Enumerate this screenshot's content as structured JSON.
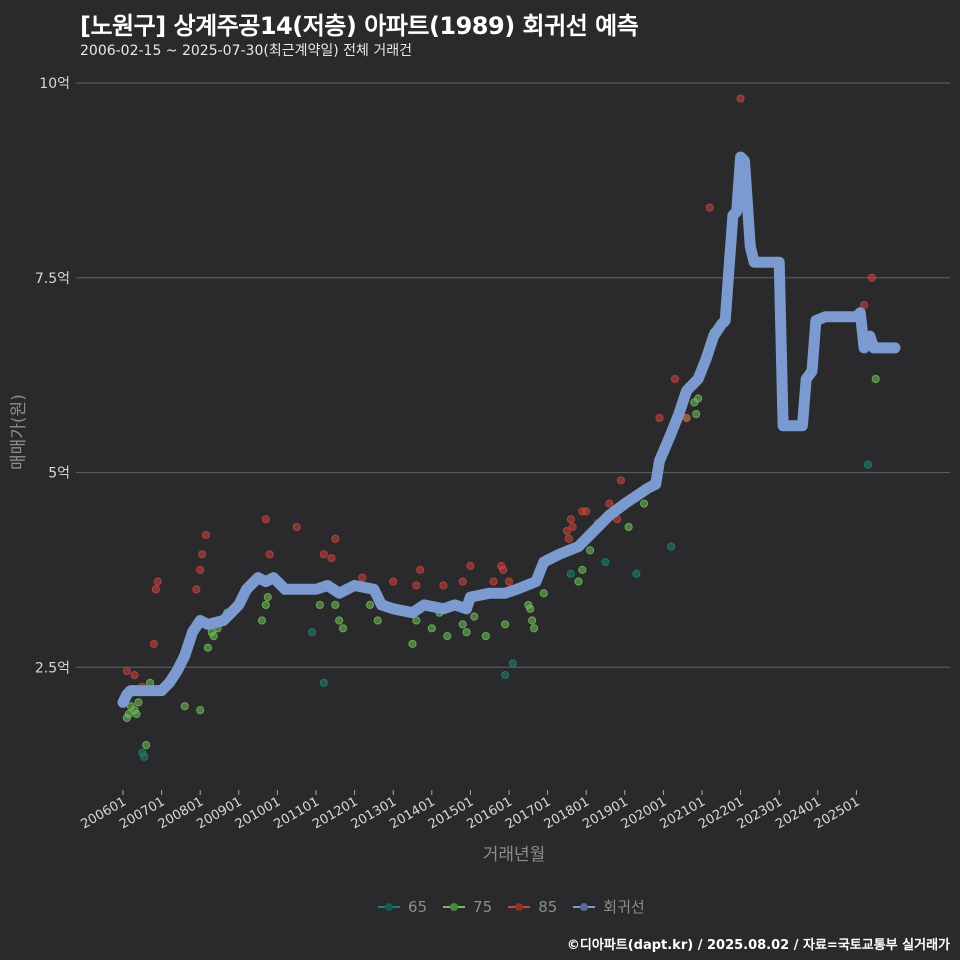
{
  "title": "[노원구] 상계주공14(저층) 아파트(1989) 회귀선 예측",
  "subtitle": "2006-02-15 ~ 2025-07-30(최근계약일) 전체 거래건",
  "caption": "©디아파트(dapt.kr) / 2025.08.02 / 자료=국토교통부 실거래가",
  "colors": {
    "background": "#2a292b",
    "grid": "#5a595b",
    "s65": "#1f7f74",
    "s75": "#6fbf5a",
    "s85": "#c9443f",
    "regression": "#7b9bd0"
  },
  "chart_data": {
    "type": "scatter",
    "title": "[노원구] 상계주공14(저층) 아파트(1989) 회귀선 예측",
    "subtitle": "2006-02-15 ~ 2025-07-30(최근계약일) 전체 거래건",
    "xlabel": "거래년월",
    "ylabel": "매매가(원)",
    "yticks": [
      {
        "v": 2.5,
        "label": "2.5억"
      },
      {
        "v": 5,
        "label": "5억"
      },
      {
        "v": 7.5,
        "label": "7.5억"
      },
      {
        "v": 10,
        "label": "10억"
      }
    ],
    "ylim": [
      0.9,
      10.2
    ],
    "xticks": [
      "200601",
      "200701",
      "200801",
      "200901",
      "201001",
      "201101",
      "201201",
      "201301",
      "201401",
      "201501",
      "201601",
      "201701",
      "201801",
      "201901",
      "202001",
      "202101",
      "202201",
      "202301",
      "202401",
      "202501"
    ],
    "xlim": [
      2005.0,
      2026.3
    ],
    "legend": [
      {
        "name": "65",
        "color": "#1f7f74"
      },
      {
        "name": "75",
        "color": "#6fbf5a"
      },
      {
        "name": "85",
        "color": "#c9443f"
      },
      {
        "name": "회귀선",
        "color": "#7b9bd0"
      }
    ],
    "series": [
      {
        "name": "65",
        "points": [
          [
            2006.5,
            1.4
          ],
          [
            2006.55,
            1.35
          ],
          [
            2010.9,
            2.95
          ],
          [
            2011.2,
            2.3
          ],
          [
            2015.9,
            2.4
          ],
          [
            2016.1,
            2.55
          ],
          [
            2017.6,
            3.7
          ],
          [
            2018.5,
            3.85
          ],
          [
            2019.3,
            3.7
          ],
          [
            2020.2,
            4.05
          ],
          [
            2025.3,
            5.1
          ]
        ]
      },
      {
        "name": "75",
        "points": [
          [
            2006.1,
            1.85
          ],
          [
            2006.15,
            1.9
          ],
          [
            2006.2,
            2.0
          ],
          [
            2006.3,
            1.95
          ],
          [
            2006.35,
            1.9
          ],
          [
            2006.4,
            2.05
          ],
          [
            2006.6,
            1.5
          ],
          [
            2006.7,
            2.3
          ],
          [
            2007.6,
            2.0
          ],
          [
            2008.0,
            1.95
          ],
          [
            2008.2,
            2.75
          ],
          [
            2008.3,
            2.95
          ],
          [
            2008.35,
            2.9
          ],
          [
            2008.45,
            3.0
          ],
          [
            2008.7,
            3.2
          ],
          [
            2009.6,
            3.1
          ],
          [
            2009.7,
            3.3
          ],
          [
            2009.75,
            3.4
          ],
          [
            2011.1,
            3.3
          ],
          [
            2011.5,
            3.3
          ],
          [
            2011.6,
            3.1
          ],
          [
            2011.7,
            3.0
          ],
          [
            2012.4,
            3.3
          ],
          [
            2012.6,
            3.1
          ],
          [
            2013.5,
            2.8
          ],
          [
            2013.6,
            3.1
          ],
          [
            2014.0,
            3.0
          ],
          [
            2014.2,
            3.2
          ],
          [
            2014.4,
            2.9
          ],
          [
            2014.8,
            3.05
          ],
          [
            2014.9,
            2.95
          ],
          [
            2015.1,
            3.15
          ],
          [
            2015.4,
            2.9
          ],
          [
            2015.9,
            3.05
          ],
          [
            2016.5,
            3.3
          ],
          [
            2016.55,
            3.25
          ],
          [
            2016.6,
            3.1
          ],
          [
            2016.65,
            3.0
          ],
          [
            2016.9,
            3.45
          ],
          [
            2017.8,
            3.6
          ],
          [
            2017.9,
            3.75
          ],
          [
            2018.1,
            4.0
          ],
          [
            2019.1,
            4.3
          ],
          [
            2019.5,
            4.6
          ],
          [
            2020.6,
            5.7
          ],
          [
            2020.8,
            5.9
          ],
          [
            2020.85,
            5.75
          ],
          [
            2020.9,
            5.95
          ],
          [
            2021.3,
            6.8
          ],
          [
            2025.5,
            6.2
          ]
        ]
      },
      {
        "name": "85",
        "points": [
          [
            2006.1,
            2.45
          ],
          [
            2006.3,
            2.4
          ],
          [
            2006.5,
            2.25
          ],
          [
            2006.8,
            2.8
          ],
          [
            2006.85,
            3.5
          ],
          [
            2006.9,
            3.6
          ],
          [
            2007.9,
            3.5
          ],
          [
            2008.0,
            3.75
          ],
          [
            2008.05,
            3.95
          ],
          [
            2008.15,
            4.2
          ],
          [
            2009.7,
            4.4
          ],
          [
            2009.8,
            3.95
          ],
          [
            2010.5,
            4.3
          ],
          [
            2011.2,
            3.95
          ],
          [
            2011.4,
            3.9
          ],
          [
            2011.5,
            4.15
          ],
          [
            2012.2,
            3.65
          ],
          [
            2013.0,
            3.6
          ],
          [
            2013.6,
            3.55
          ],
          [
            2013.7,
            3.75
          ],
          [
            2014.3,
            3.55
          ],
          [
            2014.8,
            3.6
          ],
          [
            2015.0,
            3.8
          ],
          [
            2015.6,
            3.6
          ],
          [
            2015.8,
            3.8
          ],
          [
            2015.85,
            3.75
          ],
          [
            2016.0,
            3.6
          ],
          [
            2016.05,
            3.5
          ],
          [
            2017.5,
            4.25
          ],
          [
            2017.55,
            4.15
          ],
          [
            2017.6,
            4.4
          ],
          [
            2017.65,
            4.3
          ],
          [
            2017.9,
            4.5
          ],
          [
            2018.0,
            4.5
          ],
          [
            2018.3,
            4.35
          ],
          [
            2018.6,
            4.6
          ],
          [
            2018.8,
            4.4
          ],
          [
            2018.9,
            4.9
          ],
          [
            2019.9,
            5.7
          ],
          [
            2020.3,
            6.2
          ],
          [
            2020.6,
            5.7
          ],
          [
            2021.2,
            8.4
          ],
          [
            2022.0,
            9.8
          ],
          [
            2025.2,
            7.15
          ],
          [
            2025.4,
            7.5
          ]
        ]
      }
    ],
    "regression": [
      [
        2006.0,
        2.05
      ],
      [
        2006.1,
        2.15
      ],
      [
        2006.2,
        2.2
      ],
      [
        2007.0,
        2.2
      ],
      [
        2007.2,
        2.3
      ],
      [
        2007.4,
        2.45
      ],
      [
        2007.6,
        2.65
      ],
      [
        2007.8,
        2.95
      ],
      [
        2008.0,
        3.1
      ],
      [
        2008.2,
        3.05
      ],
      [
        2008.6,
        3.1
      ],
      [
        2008.8,
        3.2
      ],
      [
        2009.0,
        3.3
      ],
      [
        2009.2,
        3.5
      ],
      [
        2009.5,
        3.65
      ],
      [
        2009.7,
        3.6
      ],
      [
        2009.9,
        3.65
      ],
      [
        2010.2,
        3.5
      ],
      [
        2011.0,
        3.5
      ],
      [
        2011.3,
        3.55
      ],
      [
        2011.6,
        3.45
      ],
      [
        2011.8,
        3.5
      ],
      [
        2012.0,
        3.55
      ],
      [
        2012.5,
        3.5
      ],
      [
        2012.7,
        3.3
      ],
      [
        2013.0,
        3.25
      ],
      [
        2013.5,
        3.2
      ],
      [
        2013.8,
        3.3
      ],
      [
        2014.3,
        3.25
      ],
      [
        2014.6,
        3.3
      ],
      [
        2014.9,
        3.25
      ],
      [
        2015.0,
        3.4
      ],
      [
        2015.5,
        3.45
      ],
      [
        2015.9,
        3.45
      ],
      [
        2016.2,
        3.5
      ],
      [
        2016.7,
        3.6
      ],
      [
        2016.9,
        3.85
      ],
      [
        2017.3,
        3.95
      ],
      [
        2017.8,
        4.05
      ],
      [
        2018.2,
        4.25
      ],
      [
        2018.6,
        4.45
      ],
      [
        2019.0,
        4.6
      ],
      [
        2019.3,
        4.7
      ],
      [
        2019.6,
        4.8
      ],
      [
        2019.8,
        4.85
      ],
      [
        2019.9,
        5.15
      ],
      [
        2020.2,
        5.5
      ],
      [
        2020.4,
        5.75
      ],
      [
        2020.6,
        6.05
      ],
      [
        2020.9,
        6.2
      ],
      [
        2021.1,
        6.45
      ],
      [
        2021.3,
        6.75
      ],
      [
        2021.5,
        6.9
      ],
      [
        2021.6,
        6.95
      ],
      [
        2021.8,
        8.3
      ],
      [
        2021.9,
        8.35
      ],
      [
        2022.0,
        9.05
      ],
      [
        2022.1,
        9.0
      ],
      [
        2022.25,
        7.9
      ],
      [
        2022.35,
        7.7
      ],
      [
        2023.0,
        7.7
      ],
      [
        2023.1,
        5.6
      ],
      [
        2023.6,
        5.6
      ],
      [
        2023.7,
        6.2
      ],
      [
        2023.85,
        6.3
      ],
      [
        2023.95,
        6.95
      ],
      [
        2024.2,
        7.0
      ],
      [
        2025.0,
        7.0
      ],
      [
        2025.1,
        7.05
      ],
      [
        2025.2,
        6.6
      ],
      [
        2025.35,
        6.75
      ],
      [
        2025.45,
        6.6
      ],
      [
        2026.0,
        6.6
      ]
    ]
  },
  "axis": {
    "xlabel": "거래년월",
    "ylabel": "매매가(원)"
  }
}
